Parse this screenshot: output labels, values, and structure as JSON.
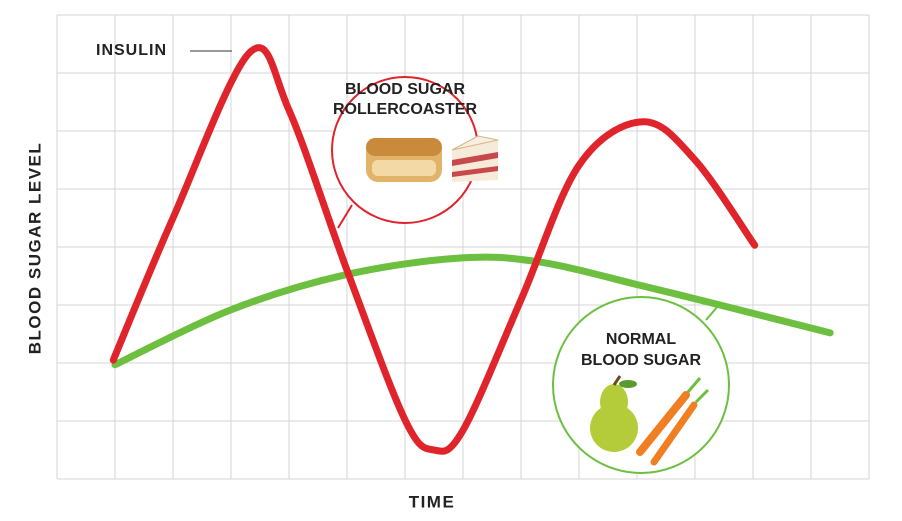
{
  "chart_data": {
    "type": "line",
    "x_label": "TIME",
    "y_label": "BLOOD SUGAR LEVEL",
    "xlim": [
      0,
      14
    ],
    "ylim": [
      0,
      8
    ],
    "xticks": [
      0,
      1,
      2,
      3,
      4,
      5,
      6,
      7,
      8,
      9,
      10,
      11,
      12,
      13,
      14
    ],
    "yticks": [
      0,
      1,
      2,
      3,
      4,
      5,
      6,
      7,
      8
    ],
    "grid": true,
    "series": [
      {
        "color": "#e0242b",
        "x": [
          0.97,
          2.0,
          3.33,
          4.0,
          5.0,
          6.0,
          6.5,
          7.0,
          8.0,
          9.0,
          10.1,
          11.0,
          12.03
        ],
        "values": [
          2.05,
          4.5,
          7.36,
          6.36,
          3.6,
          1.02,
          0.5,
          0.84,
          3.09,
          5.41,
          6.16,
          5.5,
          4.03
        ]
      },
      {
        "color": "#6cbf3f",
        "x": [
          1.0,
          2.98,
          4.97,
          6.95,
          8.33,
          10.05,
          11.43,
          13.33
        ],
        "values": [
          1.97,
          2.91,
          3.52,
          3.81,
          3.74,
          3.34,
          3.0,
          2.52
        ]
      }
    ],
    "annotations": [
      {
        "text": [
          "INSULIN"
        ]
      },
      {
        "text": [
          "BLOOD SUGAR",
          "ROLLERCOASTER"
        ]
      },
      {
        "text": [
          "NORMAL",
          "BLOOD SUGAR"
        ]
      }
    ]
  }
}
